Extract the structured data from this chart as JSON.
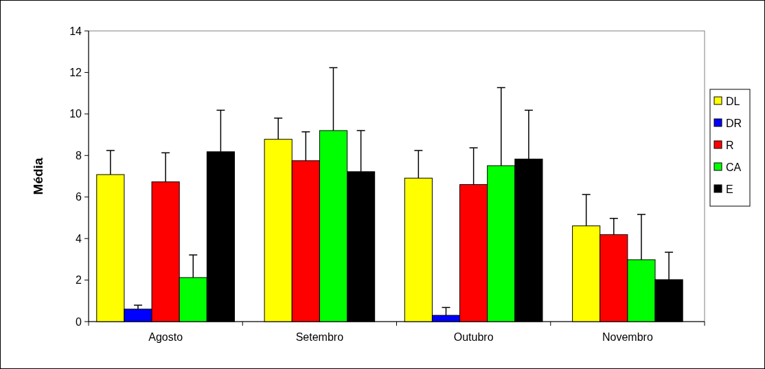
{
  "chart_data": {
    "type": "bar",
    "ylabel": "Média",
    "categories": [
      "Agosto",
      "Setembro",
      "Outubro",
      "Novembro"
    ],
    "series": [
      {
        "name": "DL",
        "color": "#ffff00",
        "values": [
          7.08,
          8.78,
          6.91,
          4.61
        ],
        "errors": [
          [
            7.08,
            8.24
          ],
          [
            8.78,
            9.8
          ],
          [
            6.91,
            8.24
          ],
          [
            4.61,
            6.12
          ]
        ]
      },
      {
        "name": "DR",
        "color": "#0000ff",
        "values": [
          0.6,
          null,
          0.3,
          null
        ],
        "errors": [
          [
            0.6,
            0.79
          ],
          null,
          [
            0.3,
            0.68
          ],
          null
        ]
      },
      {
        "name": "R",
        "color": "#ff0000",
        "values": [
          6.73,
          7.75,
          6.6,
          4.19
        ],
        "errors": [
          [
            6.73,
            8.13
          ],
          [
            7.75,
            9.14
          ],
          [
            6.6,
            8.37
          ],
          [
            4.19,
            4.97
          ]
        ]
      },
      {
        "name": "CA",
        "color": "#00ff00",
        "values": [
          2.12,
          9.2,
          7.51,
          2.98
        ],
        "errors": [
          [
            2.12,
            3.21
          ],
          [
            9.2,
            12.23
          ],
          [
            7.51,
            11.27
          ],
          [
            2.98,
            5.16
          ]
        ]
      },
      {
        "name": "E",
        "color": "#000000",
        "values": [
          8.18,
          7.22,
          7.83,
          2.02
        ],
        "errors": [
          [
            8.18,
            10.18
          ],
          [
            7.22,
            9.2
          ],
          [
            7.83,
            10.18
          ],
          [
            2.02,
            3.34
          ]
        ]
      }
    ],
    "ylim": [
      0,
      14
    ],
    "yticks": [
      0,
      2,
      4,
      6,
      8,
      10,
      12,
      14
    ],
    "grid": false,
    "legend": "right"
  }
}
